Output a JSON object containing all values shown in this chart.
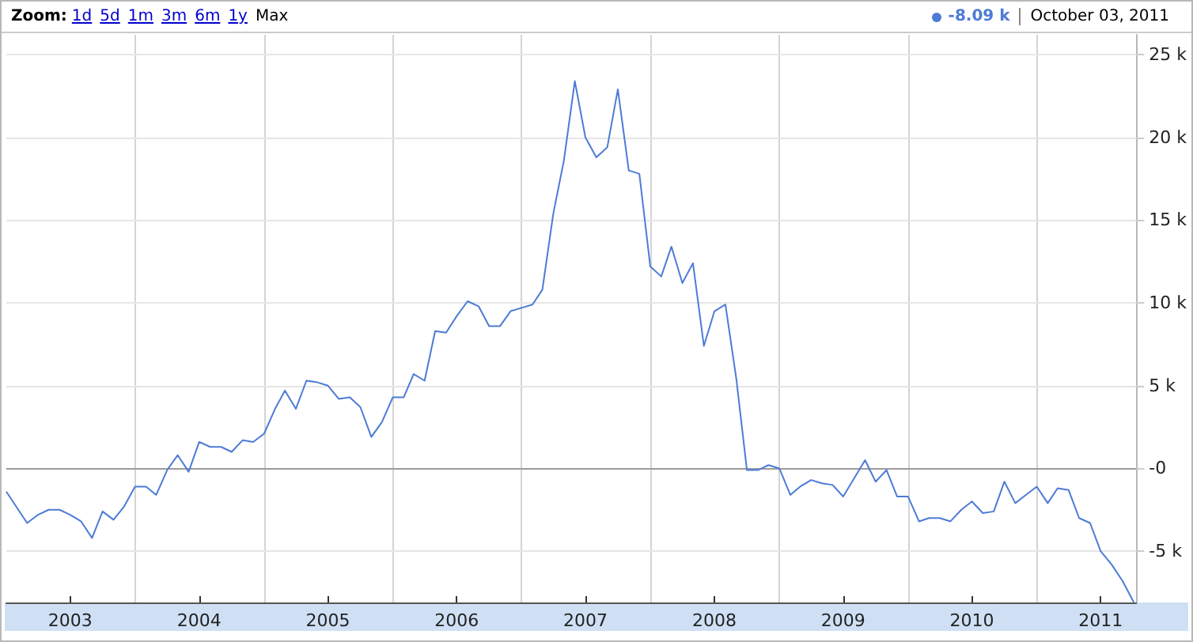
{
  "chart_data": {
    "type": "line",
    "color": "#4d7bd6",
    "marker": "none",
    "grid": true,
    "annotations": [
      "Zoom:",
      "1d",
      "5d",
      "1m",
      "3m",
      "6m",
      "1y",
      "Max",
      "-8.09 k",
      "October 03, 2011"
    ],
    "x": [
      "2003-01",
      "2003-02",
      "2003-03",
      "2003-04",
      "2003-05",
      "2003-06",
      "2003-07",
      "2003-08",
      "2003-09",
      "2003-10",
      "2003-11",
      "2003-12",
      "2004-01",
      "2004-02",
      "2004-03",
      "2004-04",
      "2004-05",
      "2004-06",
      "2004-07",
      "2004-08",
      "2004-09",
      "2004-10",
      "2004-11",
      "2004-12",
      "2005-01",
      "2005-02",
      "2005-03",
      "2005-04",
      "2005-05",
      "2005-06",
      "2005-07",
      "2005-08",
      "2005-09",
      "2005-10",
      "2005-11",
      "2005-12",
      "2006-01",
      "2006-02",
      "2006-03",
      "2006-04",
      "2006-05",
      "2006-06",
      "2006-07",
      "2006-08",
      "2006-09",
      "2006-10",
      "2006-11",
      "2006-12",
      "2007-01",
      "2007-02",
      "2007-03",
      "2007-04",
      "2007-05",
      "2007-06",
      "2007-07",
      "2007-08",
      "2007-09",
      "2007-10",
      "2007-11",
      "2007-12",
      "2008-01",
      "2008-02",
      "2008-03",
      "2008-04",
      "2008-05",
      "2008-06",
      "2008-07",
      "2008-08",
      "2008-09",
      "2008-10",
      "2008-11",
      "2008-12",
      "2009-01",
      "2009-02",
      "2009-03",
      "2009-04",
      "2009-05",
      "2009-06",
      "2009-07",
      "2009-08",
      "2009-09",
      "2009-10",
      "2009-11",
      "2009-12",
      "2010-01",
      "2010-02",
      "2010-03",
      "2010-04",
      "2010-05",
      "2010-06",
      "2010-07",
      "2010-08",
      "2010-09",
      "2010-10",
      "2010-11",
      "2010-12",
      "2011-01",
      "2011-02",
      "2011-03",
      "2011-04",
      "2011-05",
      "2011-06",
      "2011-07",
      "2011-08",
      "2011-09",
      "2011-10-03"
    ],
    "values": [
      -1.4,
      -2.4,
      -3.3,
      -2.8,
      -2.5,
      -2.5,
      -2.8,
      -3.2,
      -4.2,
      -2.6,
      -3.1,
      -2.3,
      -1.1,
      -1.1,
      -1.6,
      -0.1,
      0.8,
      -0.2,
      1.6,
      1.3,
      1.3,
      1.0,
      1.7,
      1.6,
      2.1,
      3.6,
      4.7,
      3.6,
      5.3,
      5.2,
      5.0,
      4.2,
      4.3,
      3.7,
      1.9,
      2.8,
      4.3,
      4.3,
      5.7,
      5.3,
      8.3,
      8.2,
      9.2,
      10.1,
      9.8,
      8.6,
      8.6,
      9.5,
      9.7,
      9.9,
      10.8,
      15.4,
      18.6,
      23.4,
      20.0,
      18.8,
      19.4,
      22.9,
      18.0,
      17.8,
      12.2,
      11.6,
      13.4,
      11.2,
      12.4,
      7.4,
      9.5,
      9.9,
      5.4,
      -0.1,
      -0.1,
      0.2,
      0,
      -1.6,
      -1.1,
      -0.7,
      -0.9,
      -1.0,
      -1.7,
      -0.6,
      0.5,
      -0.8,
      -0.1,
      -1.7,
      -1.7,
      -3.2,
      -3.0,
      -3.0,
      -3.2,
      -2.5,
      -2.0,
      -2.7,
      -2.6,
      -0.8,
      -2.1,
      -1.6,
      -1.1,
      -2.1,
      -1.2,
      -1.3,
      -3.0,
      -3.3,
      -5.0,
      -5.8,
      -6.8,
      -8.09
    ],
    "xlim": [
      "2003-01",
      "2011-10-10"
    ],
    "xticks": [
      {
        "value": "2003-07",
        "label": "2003"
      },
      {
        "value": "2004-01",
        "label": null
      },
      {
        "value": "2004-07",
        "label": "2004"
      },
      {
        "value": "2005-01",
        "label": null
      },
      {
        "value": "2005-07",
        "label": "2005"
      },
      {
        "value": "2006-01",
        "label": null
      },
      {
        "value": "2006-07",
        "label": "2006"
      },
      {
        "value": "2007-01",
        "label": null
      },
      {
        "value": "2007-07",
        "label": "2007"
      },
      {
        "value": "2008-01",
        "label": null
      },
      {
        "value": "2008-07",
        "label": "2008"
      },
      {
        "value": "2009-01",
        "label": null
      },
      {
        "value": "2009-07",
        "label": "2009"
      },
      {
        "value": "2010-01",
        "label": null
      },
      {
        "value": "2010-07",
        "label": "2010"
      },
      {
        "value": "2011-01",
        "label": null
      },
      {
        "value": "2011-07",
        "label": "2011"
      }
    ],
    "ylim": [
      -8.1,
      26.2
    ],
    "yticks": [
      {
        "value": -5,
        "label": "-5 k"
      },
      {
        "value": 0,
        "label": "-0"
      },
      {
        "value": 5,
        "label": "5 k"
      },
      {
        "value": 10,
        "label": "10 k"
      },
      {
        "value": 15,
        "label": "15 k"
      },
      {
        "value": 20,
        "label": "20 k"
      },
      {
        "value": 25,
        "label": "25 k"
      }
    ],
    "ref_lines": [
      {
        "axis": "y",
        "value": 0,
        "color": "#a09a9a"
      }
    ]
  }
}
